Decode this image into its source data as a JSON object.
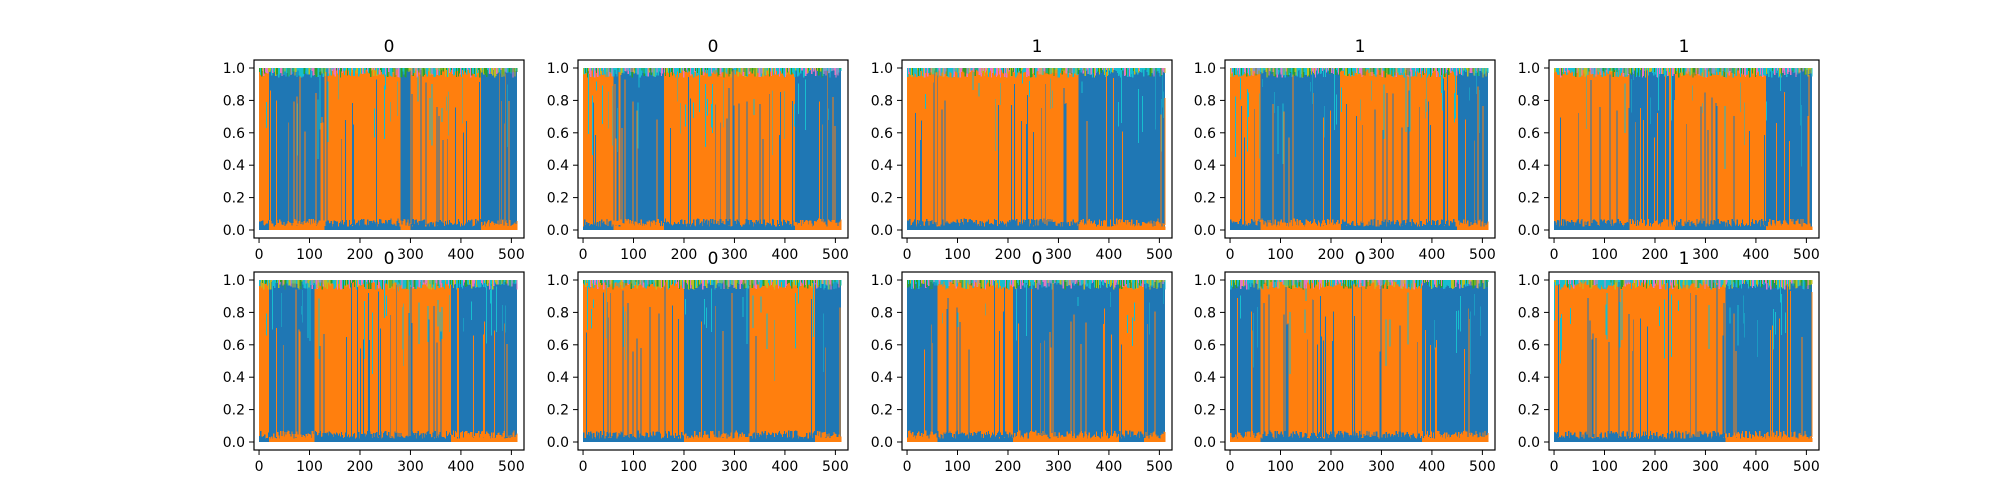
{
  "chart_data": {
    "type": "area",
    "description_note": "",
    "layout": {
      "rows": 2,
      "cols": 5
    },
    "x_range": [
      0,
      511
    ],
    "y_range": [
      0,
      1
    ],
    "x_ticks": [
      0,
      100,
      200,
      300,
      400,
      500
    ],
    "y_ticks": [
      0.0,
      0.2,
      0.4,
      0.6,
      0.8,
      1.0
    ],
    "x_tick_labels": [
      "0",
      "100",
      "200",
      "300",
      "400",
      "500"
    ],
    "y_tick_labels": [
      "0.0",
      "0.2",
      "0.4",
      "0.6",
      "0.8",
      "1.0"
    ],
    "grid": false,
    "series_colors": {
      "class_0": "#1f77b4",
      "class_1": "#ff7f0e",
      "other_a": "#17becf",
      "other_b": "#bcbd22",
      "other_c": "#2ca02c",
      "other_d": "#e377c2"
    },
    "panels": [
      {
        "title": "0",
        "segments": [
          [
            0,
            20,
            1
          ],
          [
            20,
            130,
            0
          ],
          [
            130,
            280,
            1
          ],
          [
            280,
            300,
            0
          ],
          [
            300,
            440,
            1
          ],
          [
            440,
            511,
            0
          ]
        ]
      },
      {
        "title": "0",
        "segments": [
          [
            0,
            60,
            1
          ],
          [
            60,
            160,
            0
          ],
          [
            160,
            420,
            1
          ],
          [
            420,
            511,
            0
          ]
        ]
      },
      {
        "title": "1",
        "segments": [
          [
            0,
            340,
            1
          ],
          [
            340,
            511,
            0
          ]
        ]
      },
      {
        "title": "1",
        "segments": [
          [
            0,
            60,
            1
          ],
          [
            60,
            220,
            0
          ],
          [
            220,
            450,
            1
          ],
          [
            450,
            511,
            0
          ]
        ]
      },
      {
        "title": "1",
        "segments": [
          [
            0,
            150,
            1
          ],
          [
            150,
            240,
            0
          ],
          [
            240,
            420,
            1
          ],
          [
            420,
            511,
            0
          ]
        ]
      },
      {
        "title": "0",
        "segments": [
          [
            0,
            20,
            1
          ],
          [
            20,
            110,
            0
          ],
          [
            110,
            380,
            1
          ],
          [
            380,
            511,
            0
          ]
        ]
      },
      {
        "title": "0",
        "segments": [
          [
            0,
            200,
            1
          ],
          [
            200,
            330,
            0
          ],
          [
            330,
            460,
            1
          ],
          [
            460,
            511,
            0
          ]
        ]
      },
      {
        "title": "0",
        "segments": [
          [
            0,
            60,
            0
          ],
          [
            60,
            210,
            1
          ],
          [
            210,
            420,
            0
          ],
          [
            420,
            470,
            1
          ],
          [
            470,
            511,
            0
          ]
        ]
      },
      {
        "title": "0",
        "segments": [
          [
            0,
            60,
            0
          ],
          [
            60,
            380,
            1
          ],
          [
            380,
            511,
            0
          ]
        ]
      },
      {
        "title": "1",
        "segments": [
          [
            0,
            340,
            1
          ],
          [
            340,
            511,
            0
          ]
        ]
      }
    ]
  }
}
